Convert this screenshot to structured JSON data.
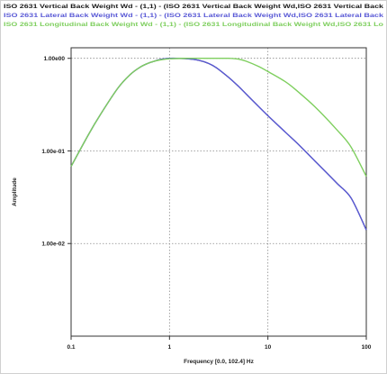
{
  "chart_data": {
    "type": "line",
    "xlabel": "Frequency [0.0, 102.4] Hz",
    "ylabel": "Amplitude",
    "x_scale": "log",
    "y_scale": "log",
    "xlim": [
      0.1,
      100
    ],
    "ylim": [
      0.001,
      1.3
    ],
    "grid": true,
    "x_ticks": [
      {
        "value": 0.1,
        "label": "0.1"
      },
      {
        "value": 1,
        "label": "1"
      },
      {
        "value": 10,
        "label": "10"
      },
      {
        "value": 100,
        "label": "100"
      }
    ],
    "y_ticks": [
      {
        "value": 1,
        "label": "1.00e00"
      },
      {
        "value": 0.1,
        "label": "1.00e-01"
      },
      {
        "value": 0.01,
        "label": "1.00e-02"
      }
    ],
    "legend_placement": "top",
    "series": [
      {
        "name": "ISO 2631 Vertical Back Weight Wd - (1,1) - (ISO 2631 Vertical Back Weight Wd,ISO 2631 Vertical Back",
        "color": "#1a1a1a",
        "x": [
          0.1,
          0.15,
          0.2,
          0.3,
          0.4,
          0.5,
          0.6,
          0.7,
          0.8,
          1.0,
          1.2,
          1.5,
          2,
          2.5,
          3,
          4,
          5,
          7,
          10,
          15,
          20,
          30,
          50,
          70,
          100
        ],
        "y": [
          0.068,
          0.15,
          0.25,
          0.48,
          0.67,
          0.8,
          0.88,
          0.93,
          0.97,
          1.0,
          1.0,
          0.99,
          0.95,
          0.88,
          0.79,
          0.62,
          0.5,
          0.35,
          0.24,
          0.16,
          0.12,
          0.078,
          0.045,
          0.031,
          0.014
        ]
      },
      {
        "name": "ISO 2631 Lateral Back Weight Wd - (1,1) - (ISO 2631 Lateral Back Weight Wd,ISO 2631 Lateral Back",
        "color": "#5a5ad6",
        "x": [
          0.1,
          0.15,
          0.2,
          0.3,
          0.4,
          0.5,
          0.6,
          0.7,
          0.8,
          1.0,
          1.2,
          1.5,
          2,
          2.5,
          3,
          4,
          5,
          7,
          10,
          15,
          20,
          30,
          50,
          70,
          100
        ],
        "y": [
          0.068,
          0.15,
          0.25,
          0.48,
          0.67,
          0.8,
          0.88,
          0.93,
          0.97,
          1.0,
          1.0,
          0.99,
          0.95,
          0.88,
          0.79,
          0.62,
          0.5,
          0.35,
          0.24,
          0.16,
          0.12,
          0.078,
          0.045,
          0.031,
          0.014
        ]
      },
      {
        "name": "ISO 2631 Longitudinal Back Weight Wd - (1,1) - (ISO 2631 Longitudinal Back Weight Wd,ISO 2631 Lo",
        "color": "#7fcf5f",
        "x": [
          0.1,
          0.15,
          0.2,
          0.3,
          0.4,
          0.5,
          0.6,
          0.7,
          0.8,
          1.0,
          1.5,
          2,
          3,
          4,
          5,
          6,
          8,
          10,
          15,
          20,
          30,
          50,
          70,
          100
        ],
        "y": [
          0.068,
          0.15,
          0.25,
          0.48,
          0.67,
          0.8,
          0.88,
          0.93,
          0.96,
          0.99,
          1.0,
          1.0,
          1.0,
          1.0,
          0.98,
          0.93,
          0.82,
          0.72,
          0.56,
          0.44,
          0.3,
          0.17,
          0.11,
          0.053
        ]
      }
    ]
  }
}
